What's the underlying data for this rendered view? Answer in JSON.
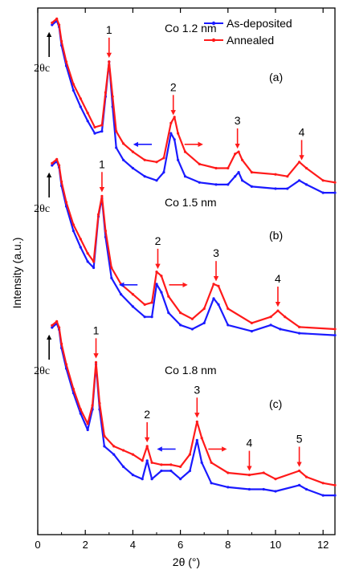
{
  "chart_data": {
    "type": "line",
    "xlabel": "2θ (°)",
    "ylabel": "Intensity (a.u.)",
    "xlim": [
      0,
      12.5
    ],
    "xticks": [
      "0",
      "2",
      "4",
      "6",
      "8",
      "10",
      "12"
    ],
    "grid": false,
    "legend": {
      "placement": "top-right",
      "entries": [
        "As-deposited",
        "Annealed"
      ]
    },
    "colors": {
      "as_deposited": "#1a1aff",
      "annealed": "#ff1a1a",
      "arrow_red": "#ff1a1a",
      "arrow_blue": "#1a1aff",
      "axis": "#000000"
    },
    "panels": [
      {
        "id": "a",
        "panel_label": "(a)",
        "material": "Co 1.2 nm",
        "critical_label": "2θc",
        "peaks": [
          {
            "label": "1",
            "x": 3.0
          },
          {
            "label": "2",
            "x": 5.7
          },
          {
            "label": "3",
            "x": 8.4
          },
          {
            "label": "4",
            "x": 11.1
          }
        ],
        "shift_arrows_x": 5.0,
        "series": [
          {
            "name": "As-deposited",
            "points": [
              [
                0.6,
                0.8
              ],
              [
                0.8,
                0.82
              ],
              [
                0.9,
                0.79
              ],
              [
                1.0,
                0.7
              ],
              [
                1.2,
                0.6
              ],
              [
                1.5,
                0.48
              ],
              [
                1.8,
                0.4
              ],
              [
                2.1,
                0.33
              ],
              [
                2.4,
                0.27
              ],
              [
                2.7,
                0.28
              ],
              [
                2.85,
                0.45
              ],
              [
                3.0,
                0.62
              ],
              [
                3.15,
                0.4
              ],
              [
                3.3,
                0.2
              ],
              [
                3.6,
                0.14
              ],
              [
                4.0,
                0.1
              ],
              [
                4.5,
                0.06
              ],
              [
                5.0,
                0.04
              ],
              [
                5.3,
                0.08
              ],
              [
                5.6,
                0.27
              ],
              [
                5.75,
                0.24
              ],
              [
                5.9,
                0.14
              ],
              [
                6.2,
                0.06
              ],
              [
                6.8,
                0.03
              ],
              [
                7.5,
                0.02
              ],
              [
                8.0,
                0.02
              ],
              [
                8.3,
                0.06
              ],
              [
                8.45,
                0.08
              ],
              [
                8.6,
                0.04
              ],
              [
                9.0,
                0.01
              ],
              [
                10.0,
                0.0
              ],
              [
                10.5,
                0.0
              ],
              [
                11.0,
                0.04
              ],
              [
                11.3,
                0.02
              ],
              [
                12.0,
                -0.02
              ],
              [
                12.5,
                -0.02
              ]
            ]
          },
          {
            "name": "Annealed",
            "points": [
              [
                0.6,
                0.81
              ],
              [
                0.8,
                0.83
              ],
              [
                0.9,
                0.8
              ],
              [
                1.0,
                0.72
              ],
              [
                1.2,
                0.62
              ],
              [
                1.5,
                0.51
              ],
              [
                1.8,
                0.44
              ],
              [
                2.1,
                0.37
              ],
              [
                2.4,
                0.3
              ],
              [
                2.7,
                0.31
              ],
              [
                2.85,
                0.47
              ],
              [
                3.0,
                0.62
              ],
              [
                3.15,
                0.45
              ],
              [
                3.3,
                0.28
              ],
              [
                3.6,
                0.22
              ],
              [
                4.0,
                0.18
              ],
              [
                4.5,
                0.14
              ],
              [
                5.0,
                0.13
              ],
              [
                5.3,
                0.15
              ],
              [
                5.6,
                0.32
              ],
              [
                5.75,
                0.35
              ],
              [
                5.9,
                0.27
              ],
              [
                6.2,
                0.18
              ],
              [
                6.8,
                0.12
              ],
              [
                7.5,
                0.1
              ],
              [
                8.0,
                0.1
              ],
              [
                8.3,
                0.17
              ],
              [
                8.45,
                0.18
              ],
              [
                8.6,
                0.14
              ],
              [
                9.0,
                0.08
              ],
              [
                10.0,
                0.07
              ],
              [
                10.5,
                0.06
              ],
              [
                11.0,
                0.13
              ],
              [
                11.3,
                0.1
              ],
              [
                12.0,
                0.04
              ],
              [
                12.5,
                0.03
              ]
            ]
          }
        ]
      },
      {
        "id": "b",
        "panel_label": "(b)",
        "material": "Co 1.5 nm",
        "critical_label": "2θc",
        "peaks": [
          {
            "label": "1",
            "x": 2.7
          },
          {
            "label": "2",
            "x": 5.05
          },
          {
            "label": "3",
            "x": 7.5
          },
          {
            "label": "4",
            "x": 10.1
          }
        ],
        "shift_arrows_x": 4.4,
        "series": [
          {
            "name": "As-deposited",
            "points": [
              [
                0.6,
                0.8
              ],
              [
                0.8,
                0.82
              ],
              [
                0.9,
                0.79
              ],
              [
                1.0,
                0.7
              ],
              [
                1.2,
                0.6
              ],
              [
                1.5,
                0.48
              ],
              [
                1.8,
                0.4
              ],
              [
                2.1,
                0.33
              ],
              [
                2.35,
                0.3
              ],
              [
                2.55,
                0.55
              ],
              [
                2.7,
                0.64
              ],
              [
                2.85,
                0.45
              ],
              [
                3.1,
                0.25
              ],
              [
                3.5,
                0.17
              ],
              [
                4.0,
                0.11
              ],
              [
                4.5,
                0.06
              ],
              [
                4.8,
                0.06
              ],
              [
                5.0,
                0.22
              ],
              [
                5.2,
                0.18
              ],
              [
                5.5,
                0.08
              ],
              [
                6.0,
                0.02
              ],
              [
                6.5,
                0.0
              ],
              [
                7.0,
                0.03
              ],
              [
                7.4,
                0.15
              ],
              [
                7.6,
                0.12
              ],
              [
                8.0,
                0.02
              ],
              [
                9.0,
                -0.01
              ],
              [
                9.8,
                0.02
              ],
              [
                10.2,
                0.0
              ],
              [
                11.0,
                -0.02
              ],
              [
                12.5,
                -0.03
              ]
            ]
          },
          {
            "name": "Annealed",
            "points": [
              [
                0.6,
                0.81
              ],
              [
                0.8,
                0.83
              ],
              [
                0.9,
                0.8
              ],
              [
                1.0,
                0.72
              ],
              [
                1.2,
                0.62
              ],
              [
                1.5,
                0.51
              ],
              [
                1.8,
                0.44
              ],
              [
                2.1,
                0.37
              ],
              [
                2.35,
                0.33
              ],
              [
                2.55,
                0.56
              ],
              [
                2.7,
                0.65
              ],
              [
                2.85,
                0.48
              ],
              [
                3.1,
                0.3
              ],
              [
                3.5,
                0.22
              ],
              [
                4.0,
                0.17
              ],
              [
                4.5,
                0.12
              ],
              [
                4.8,
                0.13
              ],
              [
                5.0,
                0.28
              ],
              [
                5.2,
                0.26
              ],
              [
                5.5,
                0.16
              ],
              [
                6.0,
                0.08
              ],
              [
                6.5,
                0.05
              ],
              [
                7.0,
                0.1
              ],
              [
                7.4,
                0.22
              ],
              [
                7.6,
                0.21
              ],
              [
                8.0,
                0.1
              ],
              [
                9.0,
                0.03
              ],
              [
                9.8,
                0.06
              ],
              [
                10.1,
                0.09
              ],
              [
                10.4,
                0.06
              ],
              [
                11.0,
                0.01
              ],
              [
                12.5,
                0.0
              ]
            ]
          }
        ]
      },
      {
        "id": "c",
        "panel_label": "(c)",
        "material": "Co 1.8 nm",
        "critical_label": "2θc",
        "peaks": [
          {
            "label": "1",
            "x": 2.45
          },
          {
            "label": "2",
            "x": 4.6
          },
          {
            "label": "3",
            "x": 6.7
          },
          {
            "label": "4",
            "x": 8.9
          },
          {
            "label": "5",
            "x": 11.0
          }
        ],
        "shift_arrows_x": 6.0,
        "series": [
          {
            "name": "As-deposited",
            "points": [
              [
                0.6,
                0.8
              ],
              [
                0.8,
                0.82
              ],
              [
                0.9,
                0.79
              ],
              [
                1.0,
                0.7
              ],
              [
                1.2,
                0.6
              ],
              [
                1.5,
                0.48
              ],
              [
                1.8,
                0.38
              ],
              [
                2.1,
                0.3
              ],
              [
                2.3,
                0.4
              ],
              [
                2.45,
                0.62
              ],
              [
                2.6,
                0.4
              ],
              [
                2.8,
                0.22
              ],
              [
                3.2,
                0.18
              ],
              [
                3.6,
                0.12
              ],
              [
                4.0,
                0.08
              ],
              [
                4.4,
                0.06
              ],
              [
                4.6,
                0.15
              ],
              [
                4.8,
                0.06
              ],
              [
                5.2,
                0.1
              ],
              [
                5.6,
                0.1
              ],
              [
                6.0,
                0.06
              ],
              [
                6.4,
                0.1
              ],
              [
                6.7,
                0.25
              ],
              [
                6.9,
                0.14
              ],
              [
                7.3,
                0.04
              ],
              [
                8.0,
                0.02
              ],
              [
                8.9,
                0.01
              ],
              [
                9.5,
                0.01
              ],
              [
                10.0,
                0.0
              ],
              [
                11.0,
                0.03
              ],
              [
                11.3,
                0.01
              ],
              [
                12.0,
                -0.02
              ],
              [
                12.5,
                -0.02
              ]
            ]
          },
          {
            "name": "Annealed",
            "points": [
              [
                0.6,
                0.81
              ],
              [
                0.8,
                0.83
              ],
              [
                0.9,
                0.8
              ],
              [
                1.0,
                0.72
              ],
              [
                1.2,
                0.62
              ],
              [
                1.5,
                0.5
              ],
              [
                1.8,
                0.4
              ],
              [
                2.1,
                0.33
              ],
              [
                2.3,
                0.42
              ],
              [
                2.45,
                0.63
              ],
              [
                2.6,
                0.43
              ],
              [
                2.8,
                0.27
              ],
              [
                3.2,
                0.22
              ],
              [
                3.6,
                0.2
              ],
              [
                4.0,
                0.18
              ],
              [
                4.4,
                0.15
              ],
              [
                4.6,
                0.22
              ],
              [
                4.8,
                0.14
              ],
              [
                5.2,
                0.13
              ],
              [
                5.6,
                0.13
              ],
              [
                6.0,
                0.12
              ],
              [
                6.4,
                0.18
              ],
              [
                6.7,
                0.34
              ],
              [
                6.9,
                0.26
              ],
              [
                7.3,
                0.14
              ],
              [
                8.0,
                0.09
              ],
              [
                8.9,
                0.08
              ],
              [
                9.5,
                0.09
              ],
              [
                10.0,
                0.06
              ],
              [
                11.0,
                0.1
              ],
              [
                11.3,
                0.07
              ],
              [
                12.0,
                0.04
              ],
              [
                12.5,
                0.03
              ]
            ]
          }
        ]
      }
    ]
  }
}
